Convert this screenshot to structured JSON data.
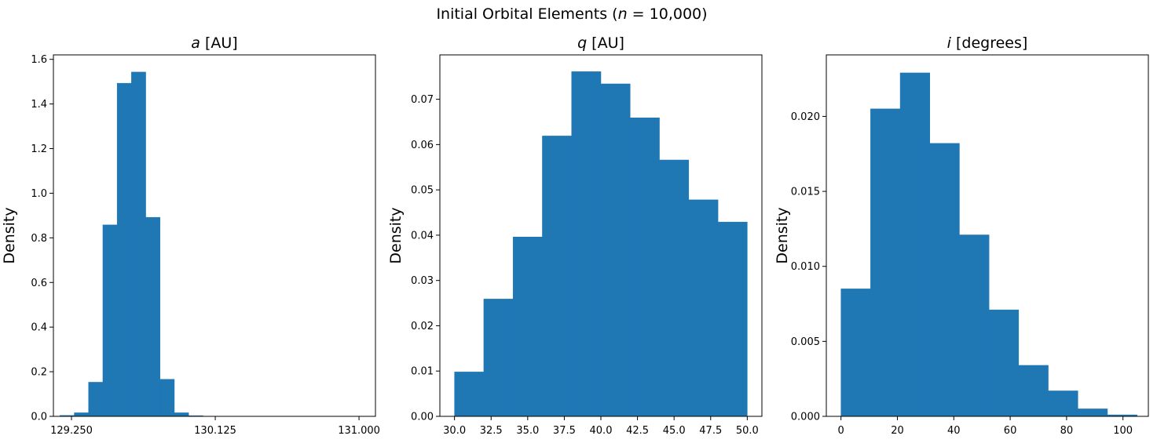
{
  "figure": {
    "suptitle_prefix": "Initial Orbital Elements (",
    "suptitle_var": "n",
    "suptitle_suffix": " = 10,000)"
  },
  "chart_data": [
    {
      "type": "bar",
      "title_var": "a",
      "title_unit": " [AU]",
      "ylabel": "Density",
      "xlabel": "",
      "xlim": [
        129.14,
        131.1
      ],
      "ylim": [
        0,
        1.62
      ],
      "xticks": [
        129.25,
        130.125,
        131.0
      ],
      "xtick_labels": [
        "129.250",
        "130.125",
        "131.000"
      ],
      "yticks": [
        0.0,
        0.2,
        0.4,
        0.6,
        0.8,
        1.0,
        1.2,
        1.4,
        1.6
      ],
      "ytick_labels": [
        "0.0",
        "0.2",
        "0.4",
        "0.6",
        "0.8",
        "1.0",
        "1.2",
        "1.4",
        "1.6"
      ],
      "bin_edges": [
        129.18,
        129.267,
        129.354,
        129.441,
        129.528,
        129.615,
        129.702,
        129.789,
        129.876,
        129.963,
        130.05
      ],
      "values": [
        0.004,
        0.016,
        0.153,
        0.858,
        1.493,
        1.543,
        0.892,
        0.166,
        0.016,
        0.003
      ],
      "color": "#1f77b4"
    },
    {
      "type": "bar",
      "title_var": "q",
      "title_unit": " [AU]",
      "ylabel": "Density",
      "xlabel": "",
      "xlim": [
        29.0,
        51.0
      ],
      "ylim": [
        0,
        0.0798
      ],
      "xticks": [
        30.0,
        32.5,
        35.0,
        37.5,
        40.0,
        42.5,
        45.0,
        47.5,
        50.0
      ],
      "xtick_labels": [
        "30.0",
        "32.5",
        "35.0",
        "37.5",
        "40.0",
        "42.5",
        "45.0",
        "47.5",
        "50.0"
      ],
      "yticks": [
        0.0,
        0.01,
        0.02,
        0.03,
        0.04,
        0.05,
        0.06,
        0.07
      ],
      "ytick_labels": [
        "0.00",
        "0.01",
        "0.02",
        "0.03",
        "0.04",
        "0.05",
        "0.06",
        "0.07"
      ],
      "bin_edges": [
        30.0,
        32.0,
        34.0,
        36.0,
        38.0,
        40.0,
        42.0,
        44.0,
        46.0,
        48.0,
        50.0
      ],
      "values": [
        0.0098,
        0.0259,
        0.0396,
        0.0619,
        0.0761,
        0.0734,
        0.0659,
        0.0566,
        0.0478,
        0.0429
      ],
      "color": "#1f77b4"
    },
    {
      "type": "bar",
      "title_var": "i",
      "title_unit": " [degrees]",
      "ylabel": "Density",
      "xlabel": "",
      "xlim": [
        -5.2,
        109.0
      ],
      "ylim": [
        0,
        0.0241
      ],
      "xticks": [
        0,
        20,
        40,
        60,
        80,
        100
      ],
      "xtick_labels": [
        "0",
        "20",
        "40",
        "60",
        "80",
        "100"
      ],
      "yticks": [
        0.0,
        0.005,
        0.01,
        0.015,
        0.02
      ],
      "ytick_labels": [
        "0.000",
        "0.005",
        "0.010",
        "0.015",
        "0.020"
      ],
      "bin_edges": [
        0.0,
        10.5,
        21.0,
        31.5,
        42.0,
        52.5,
        63.0,
        73.5,
        84.0,
        94.5,
        105.0
      ],
      "values": [
        0.0085,
        0.0205,
        0.0229,
        0.0182,
        0.0121,
        0.0071,
        0.0034,
        0.0017,
        0.0005,
        0.0001
      ],
      "color": "#1f77b4"
    }
  ]
}
